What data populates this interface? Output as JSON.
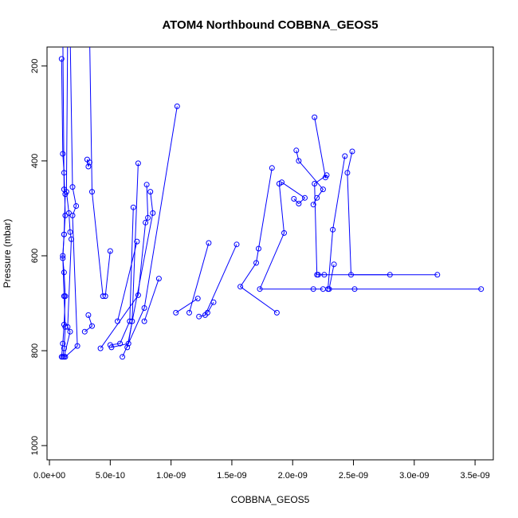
{
  "chart_data": {
    "type": "line",
    "title": "ATOM4 Northbound COBBNA_GEOS5",
    "xlabel": "COBBNA_GEOS5",
    "ylabel": "Pressure (mbar)",
    "xlim": [
      -2e-11,
      3.65e-09
    ],
    "ylim": [
      1030,
      160
    ],
    "y_reversed": true,
    "grid": false,
    "line_color": "#0000ff",
    "x_ticks": [
      0,
      5e-10,
      1e-09,
      1.5e-09,
      2e-09,
      2.5e-09,
      3e-09,
      3.5e-09
    ],
    "x_tick_labels": [
      "0.0e+00",
      "5.0e-10",
      "1.0e-09",
      "1.5e-09",
      "2.0e-09",
      "2.5e-09",
      "3.0e-09",
      "3.5e-09"
    ],
    "y_ticks": [
      200,
      400,
      600,
      800,
      1000
    ],
    "y_tick_labels": [
      "200",
      "400",
      "600",
      "800",
      "1000"
    ],
    "series": [
      {
        "points": [
          [
            1e-10,
            185
          ],
          [
            1.1e-10,
            385
          ],
          [
            1.2e-10,
            425
          ],
          [
            1.3e-10,
            515
          ],
          [
            1.2e-10,
            555
          ],
          [
            1.1e-10,
            605
          ],
          [
            1.2e-10,
            635
          ],
          [
            1.3e-10,
            685
          ],
          [
            1.2e-10,
            745
          ],
          [
            1.1e-10,
            785
          ],
          [
            1e-10,
            813
          ]
        ]
      },
      {
        "points": [
          [
            1.1e-10,
            130
          ],
          [
            1.2e-10,
            460
          ],
          [
            1.3e-10,
            470
          ],
          [
            1.2e-10,
            555
          ],
          [
            1.1e-10,
            600
          ],
          [
            1.2e-10,
            685
          ],
          [
            1.3e-10,
            750
          ],
          [
            1.2e-10,
            795
          ],
          [
            1.1e-10,
            813
          ]
        ]
      },
      {
        "points": [
          [
            1.5e-10,
            130
          ],
          [
            1.4e-10,
            465
          ],
          [
            1.6e-10,
            510
          ],
          [
            1.7e-10,
            550
          ],
          [
            1.8e-10,
            565
          ],
          [
            1.5e-10,
            750
          ],
          [
            1.7e-10,
            760
          ],
          [
            1.2e-10,
            813
          ]
        ]
      },
      {
        "points": [
          [
            1.7e-10,
            130
          ],
          [
            1.9e-10,
            455
          ],
          [
            2.2e-10,
            495
          ],
          [
            1.9e-10,
            515
          ],
          [
            2.3e-10,
            790
          ],
          [
            1.3e-10,
            813
          ]
        ]
      },
      {
        "points": [
          [
            3.3e-10,
            130
          ],
          [
            3.5e-10,
            465
          ],
          [
            4.4e-10,
            685
          ]
        ]
      },
      {
        "points": [
          [
            3.1e-10,
            397
          ],
          [
            3.2e-10,
            412
          ],
          [
            3.3e-10,
            403
          ]
        ]
      },
      {
        "points": [
          [
            5e-10,
            590
          ],
          [
            4.6e-10,
            685
          ]
        ]
      },
      {
        "points": [
          [
            3.2e-10,
            725
          ],
          [
            3.5e-10,
            748
          ],
          [
            2.9e-10,
            760
          ]
        ]
      },
      {
        "points": [
          [
            7.3e-10,
            405
          ],
          [
            6.8e-10,
            738
          ],
          [
            6.5e-10,
            785
          ],
          [
            5.1e-10,
            793
          ]
        ]
      },
      {
        "points": [
          [
            6.9e-10,
            498
          ],
          [
            6.6e-10,
            738
          ],
          [
            5.8e-10,
            785
          ],
          [
            5e-10,
            788
          ]
        ]
      },
      {
        "points": [
          [
            7.2e-10,
            570
          ],
          [
            5.6e-10,
            738
          ]
        ]
      },
      {
        "points": [
          [
            8e-10,
            450
          ],
          [
            8.1e-10,
            520
          ],
          [
            7.9e-10,
            530
          ],
          [
            7.3e-10,
            683
          ],
          [
            4.2e-10,
            795
          ]
        ]
      },
      {
        "points": [
          [
            8.3e-10,
            465
          ],
          [
            8.5e-10,
            510
          ],
          [
            6.4e-10,
            793
          ]
        ]
      },
      {
        "points": [
          [
            1.05e-09,
            285
          ],
          [
            7.8e-10,
            710
          ],
          [
            6e-10,
            813
          ]
        ]
      },
      {
        "points": [
          [
            9e-10,
            648
          ],
          [
            7.8e-10,
            738
          ]
        ]
      },
      {
        "points": [
          [
            1.31e-09,
            573
          ],
          [
            1.15e-09,
            720
          ]
        ]
      },
      {
        "points": [
          [
            1.22e-09,
            690
          ],
          [
            1.04e-09,
            720
          ]
        ]
      },
      {
        "points": [
          [
            1.54e-09,
            576
          ],
          [
            1.28e-09,
            725
          ],
          [
            1.23e-09,
            728
          ]
        ]
      },
      {
        "points": [
          [
            1.35e-09,
            698
          ],
          [
            1.3e-09,
            720
          ]
        ]
      },
      {
        "points": [
          [
            1.83e-09,
            415
          ],
          [
            1.72e-09,
            585
          ],
          [
            1.7e-09,
            615
          ],
          [
            1.57e-09,
            665
          ],
          [
            1.87e-09,
            720
          ]
        ]
      },
      {
        "points": [
          [
            1.89e-09,
            448
          ],
          [
            1.93e-09,
            552
          ],
          [
            1.73e-09,
            670
          ],
          [
            2.17e-09,
            670
          ],
          [
            2.25e-09,
            670
          ]
        ]
      },
      {
        "points": [
          [
            1.91e-09,
            445
          ],
          [
            2.1e-09,
            478
          ],
          [
            2.05e-09,
            490
          ],
          [
            2.01e-09,
            480
          ]
        ]
      },
      {
        "points": [
          [
            2.03e-09,
            378
          ],
          [
            2.05e-09,
            400
          ],
          [
            2.25e-09,
            460
          ],
          [
            2.2e-09,
            478
          ],
          [
            2.17e-09,
            492
          ]
        ]
      },
      {
        "points": [
          [
            2.18e-09,
            308
          ],
          [
            2.27e-09,
            435
          ],
          [
            2.28e-09,
            430
          ],
          [
            2.18e-09,
            448
          ],
          [
            2.2e-09,
            640
          ],
          [
            2.26e-09,
            640
          ]
        ]
      },
      {
        "points": [
          [
            2.43e-09,
            390
          ],
          [
            2.33e-09,
            545
          ],
          [
            2.29e-09,
            670
          ]
        ]
      },
      {
        "points": [
          [
            2.49e-09,
            380
          ],
          [
            2.45e-09,
            425
          ],
          [
            2.48e-09,
            640
          ],
          [
            2.8e-09,
            640
          ]
        ]
      },
      {
        "points": [
          [
            2.34e-09,
            618
          ],
          [
            2.3e-09,
            670
          ],
          [
            2.51e-09,
            670
          ],
          [
            3.55e-09,
            670
          ]
        ]
      },
      {
        "points": [
          [
            2.21e-09,
            640
          ],
          [
            3.19e-09,
            640
          ]
        ]
      }
    ]
  }
}
